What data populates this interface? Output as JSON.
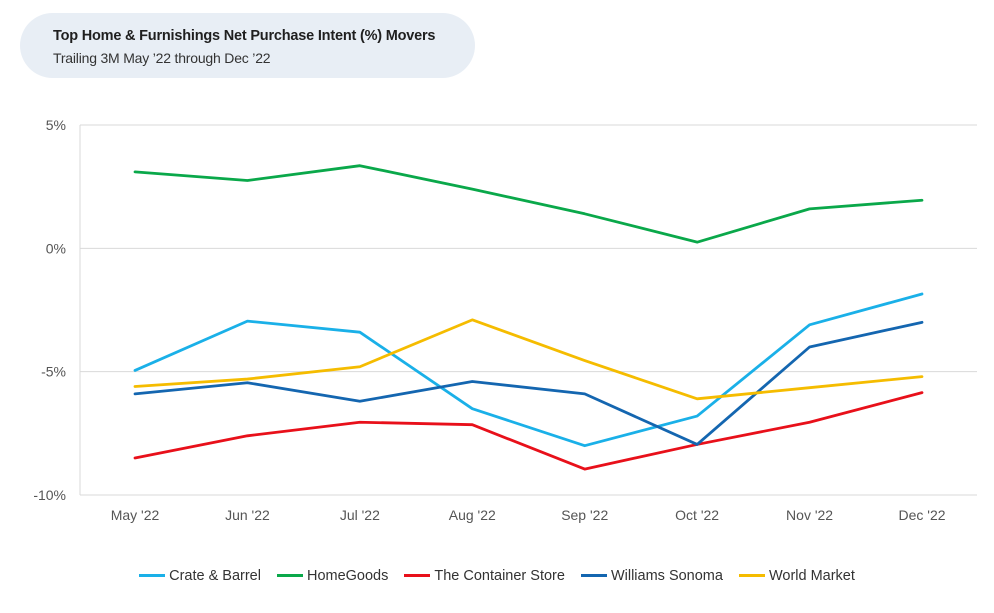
{
  "title": "Top Home & Furnishings Net Purchase Intent (%) Movers",
  "subtitle": "Trailing 3M May ’22 through Dec ’22",
  "chart_data": {
    "type": "line",
    "categories": [
      "May '22",
      "Jun '22",
      "Jul '22",
      "Aug '22",
      "Sep '22",
      "Oct '22",
      "Nov '22",
      "Dec '22"
    ],
    "yticks": [
      5,
      0,
      -5,
      -10
    ],
    "ytick_labels": [
      "5%",
      "0%",
      "-5%",
      "-10%"
    ],
    "ylim": [
      -10,
      5
    ],
    "grid": true,
    "legend_position": "bottom",
    "series": [
      {
        "name": "Crate & Barrel",
        "color": "#1ab0e8",
        "values": [
          -4.95,
          -2.95,
          -3.4,
          -6.5,
          -8.0,
          -6.8,
          -3.1,
          -1.85
        ]
      },
      {
        "name": "HomeGoods",
        "color": "#0aa84a",
        "values": [
          3.1,
          2.75,
          3.35,
          2.4,
          1.4,
          0.25,
          1.6,
          1.95
        ]
      },
      {
        "name": "The Container Store",
        "color": "#e8101a",
        "values": [
          -8.5,
          -7.6,
          -7.05,
          -7.15,
          -8.95,
          -7.95,
          -7.05,
          -5.85
        ]
      },
      {
        "name": "Williams Sonoma",
        "color": "#1466b0",
        "values": [
          -5.9,
          -5.45,
          -6.2,
          -5.4,
          -5.9,
          -7.95,
          -4.0,
          -3.0
        ]
      },
      {
        "name": "World Market",
        "color": "#f5bc00",
        "values": [
          -5.6,
          -5.3,
          -4.8,
          -2.9,
          -4.55,
          -6.1,
          -5.65,
          -5.2
        ]
      }
    ]
  }
}
